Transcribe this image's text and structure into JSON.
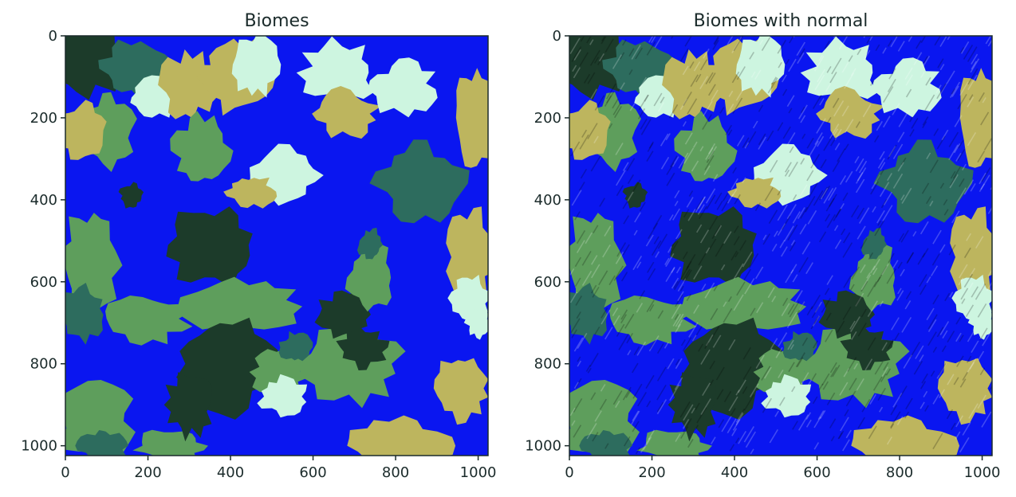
{
  "chart_data": [
    {
      "type": "heatmap",
      "title": "Biomes",
      "shading": "flat",
      "xlim": [
        0,
        1024
      ],
      "ylim": [
        1024,
        0
      ],
      "x_ticks": [
        "0",
        "200",
        "400",
        "600",
        "800",
        "1000"
      ],
      "y_ticks": [
        "0",
        "200",
        "400",
        "600",
        "800",
        "1000"
      ],
      "grid": false,
      "biome_palette": [
        "#0a16f0",
        "#1c3b2a",
        "#2d6c5e",
        "#5e9e5c",
        "#bdb55e",
        "#cdf5e0"
      ]
    },
    {
      "type": "heatmap",
      "title": "Biomes with normal",
      "shading": "normal-shaded",
      "xlim": [
        0,
        1024
      ],
      "ylim": [
        1024,
        0
      ],
      "x_ticks": [
        "0",
        "200",
        "400",
        "600",
        "800",
        "1000"
      ],
      "y_ticks": [
        "0",
        "200",
        "400",
        "600",
        "800",
        "1000"
      ],
      "grid": false,
      "biome_palette": [
        "#0a16f0",
        "#1c3b2a",
        "#2d6c5e",
        "#5e9e5c",
        "#bdb55e",
        "#cdf5e0"
      ]
    }
  ]
}
